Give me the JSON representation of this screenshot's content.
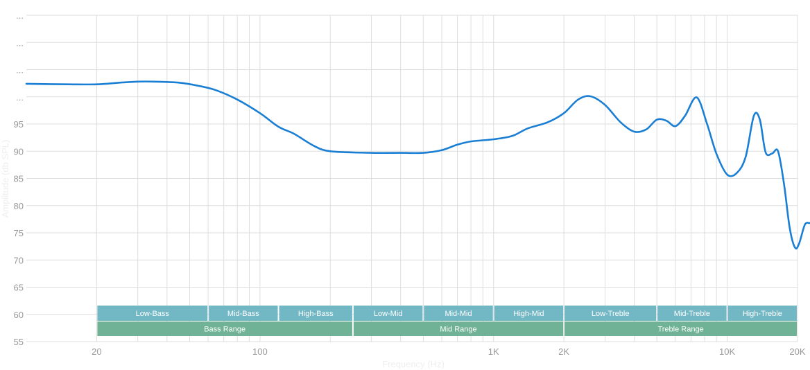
{
  "chart_data": {
    "type": "line",
    "title": "",
    "xlabel": "Frequency (Hz)",
    "ylabel": "Amplitude (db SPL)",
    "x_scale": "log",
    "xlim": [
      10,
      20000
    ],
    "ylim": [
      55,
      115
    ],
    "grid": true,
    "colors": {
      "line": "#1a7fd4",
      "sub_band": "#72b7c4",
      "range_band": "#6fb295",
      "grid": "#dddddd",
      "tick_text": "#999999"
    },
    "x_major_ticks": [
      {
        "value": 20,
        "label": "20"
      },
      {
        "value": 100,
        "label": "100"
      },
      {
        "value": 1000,
        "label": "1K"
      },
      {
        "value": 2000,
        "label": "2K"
      },
      {
        "value": 10000,
        "label": "10K"
      },
      {
        "value": 20000,
        "label": "20K"
      }
    ],
    "x_minor_grid": [
      20,
      30,
      40,
      50,
      60,
      70,
      80,
      90,
      100,
      200,
      300,
      400,
      500,
      600,
      700,
      800,
      900,
      1000,
      2000,
      3000,
      4000,
      5000,
      6000,
      7000,
      8000,
      9000,
      10000,
      20000
    ],
    "y_ticks": [
      {
        "value": 55,
        "label": "55"
      },
      {
        "value": 60,
        "label": "60"
      },
      {
        "value": 65,
        "label": "65"
      },
      {
        "value": 70,
        "label": "70"
      },
      {
        "value": 75,
        "label": "75"
      },
      {
        "value": 80,
        "label": "80"
      },
      {
        "value": 85,
        "label": "85"
      },
      {
        "value": 90,
        "label": "90"
      },
      {
        "value": 95,
        "label": "95"
      },
      {
        "value": 100,
        "label": "..."
      },
      {
        "value": 105,
        "label": "..."
      },
      {
        "value": 110,
        "label": "..."
      },
      {
        "value": 115,
        "label": "..."
      }
    ],
    "sub_bands": [
      {
        "label": "Low-Bass",
        "from": 20,
        "to": 60
      },
      {
        "label": "Mid-Bass",
        "from": 60,
        "to": 120
      },
      {
        "label": "High-Bass",
        "from": 120,
        "to": 250
      },
      {
        "label": "Low-Mid",
        "from": 250,
        "to": 500
      },
      {
        "label": "Mid-Mid",
        "from": 500,
        "to": 1000
      },
      {
        "label": "High-Mid",
        "from": 1000,
        "to": 2000
      },
      {
        "label": "Low-Treble",
        "from": 2000,
        "to": 5000
      },
      {
        "label": "Mid-Treble",
        "from": 5000,
        "to": 10000
      },
      {
        "label": "High-Treble",
        "from": 10000,
        "to": 20000
      }
    ],
    "range_bands": [
      {
        "label": "Bass Range",
        "from": 20,
        "to": 250
      },
      {
        "label": "Mid Range",
        "from": 250,
        "to": 2000
      },
      {
        "label": "Treble Range",
        "from": 2000,
        "to": 20000
      }
    ],
    "series": [
      {
        "points": [
          [
            10,
            102.4
          ],
          [
            15,
            102.3
          ],
          [
            20,
            102.3
          ],
          [
            25,
            102.6
          ],
          [
            30,
            102.8
          ],
          [
            35,
            102.8
          ],
          [
            45,
            102.6
          ],
          [
            55,
            102.0
          ],
          [
            65,
            101.2
          ],
          [
            80,
            99.5
          ],
          [
            100,
            97.0
          ],
          [
            120,
            94.5
          ],
          [
            140,
            93.2
          ],
          [
            170,
            91.0
          ],
          [
            200,
            90.0
          ],
          [
            300,
            89.7
          ],
          [
            400,
            89.7
          ],
          [
            500,
            89.7
          ],
          [
            600,
            90.2
          ],
          [
            700,
            91.2
          ],
          [
            800,
            91.8
          ],
          [
            1000,
            92.2
          ],
          [
            1200,
            92.8
          ],
          [
            1400,
            94.2
          ],
          [
            1700,
            95.3
          ],
          [
            2000,
            97.0
          ],
          [
            2300,
            99.5
          ],
          [
            2600,
            100.1
          ],
          [
            3000,
            98.5
          ],
          [
            3500,
            95.3
          ],
          [
            4000,
            93.6
          ],
          [
            4500,
            94.0
          ],
          [
            5000,
            95.8
          ],
          [
            5500,
            95.6
          ],
          [
            6000,
            94.6
          ],
          [
            6600,
            96.5
          ],
          [
            7400,
            99.9
          ],
          [
            8200,
            95.0
          ],
          [
            9000,
            89.5
          ],
          [
            10000,
            85.7
          ],
          [
            11000,
            86.0
          ],
          [
            12000,
            89.0
          ],
          [
            13000,
            96.5
          ],
          [
            13800,
            95.8
          ],
          [
            14600,
            89.8
          ],
          [
            15600,
            89.6
          ],
          [
            16500,
            90.0
          ],
          [
            17500,
            84.0
          ],
          [
            18500,
            76.0
          ],
          [
            19500,
            72.3
          ],
          [
            20300,
            73.0
          ],
          [
            21500,
            76.5
          ],
          [
            22500,
            76.8
          ]
        ]
      }
    ]
  }
}
